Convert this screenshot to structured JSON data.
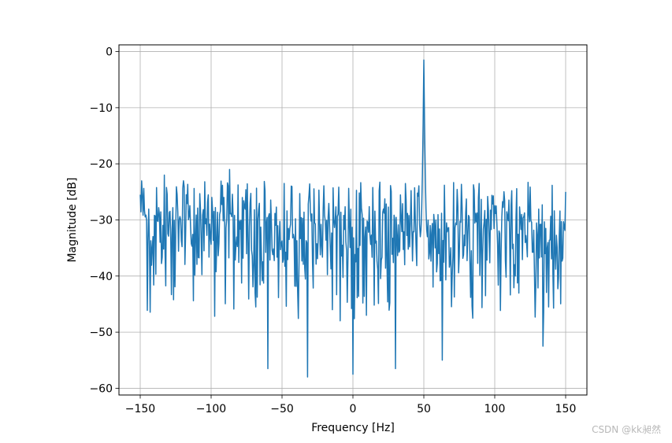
{
  "chart_data": {
    "type": "line",
    "xlabel": "Frequency [Hz]",
    "ylabel": "Magnitude [dB]",
    "xlim": [
      -165,
      165
    ],
    "ylim": [
      -61.2,
      1.2
    ],
    "x_ticks": [
      -150,
      -100,
      -50,
      0,
      50,
      100,
      150
    ],
    "x_tick_labels": [
      "−150",
      "−100",
      "−50",
      "0",
      "50",
      "100",
      "150"
    ],
    "y_ticks": [
      0,
      -10,
      -20,
      -30,
      -40,
      -50,
      -60
    ],
    "y_tick_labels": [
      "0",
      "−10",
      "−20",
      "−30",
      "−40",
      "−50",
      "−60"
    ],
    "grid": true,
    "series": [
      {
        "color": "#1f77b4",
        "x_range": [
          -150,
          150
        ],
        "x_step": 0.5,
        "noise_floor_mean": -33,
        "noise_floor_range": [
          -58,
          -21
        ],
        "peak": {
          "x": 50,
          "y": -1.5
        },
        "notable_points": [
          {
            "x": -150,
            "y": -25.5
          },
          {
            "x": -133,
            "y": -22
          },
          {
            "x": -87,
            "y": -21
          },
          {
            "x": -60,
            "y": -56.5
          },
          {
            "x": -32,
            "y": -58
          },
          {
            "x": 0,
            "y": -57.5
          },
          {
            "x": 30,
            "y": -56.5
          },
          {
            "x": 50,
            "y": -1.5
          },
          {
            "x": 63,
            "y": -55
          },
          {
            "x": 134,
            "y": -52.5
          },
          {
            "x": 150,
            "y": -25
          }
        ]
      }
    ]
  },
  "watermark": "CSDN @kk昶然",
  "colors": {
    "line": "#1f77b4",
    "grid": "#b0b0b0",
    "axes": "#000000"
  }
}
